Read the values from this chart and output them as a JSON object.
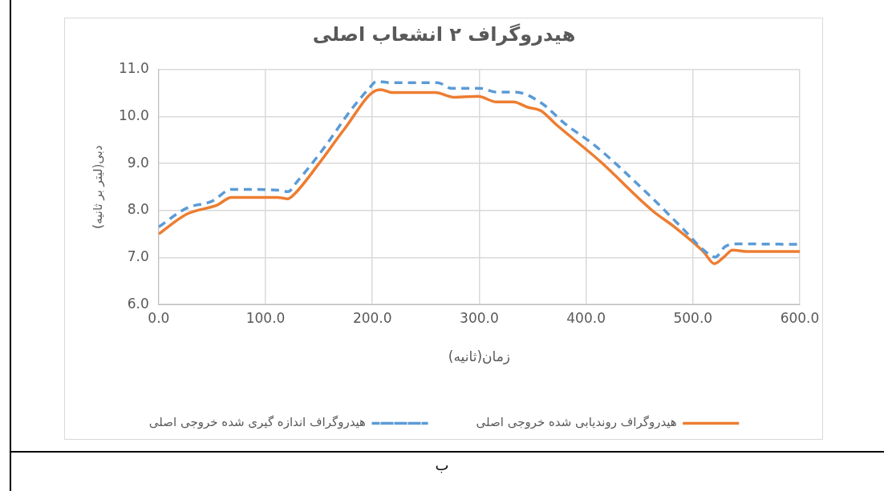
{
  "chart_data": {
    "type": "line",
    "title": "هیدروگراف ۲ انشعاب اصلی",
    "xlabel": "زمان(ثانیه)",
    "ylabel": "دبی(لیتر بر ثانیه)",
    "annotations": [
      "ب"
    ],
    "xlim": [
      0,
      600
    ],
    "xticks": [
      {
        "value": 0,
        "label": "0.0"
      },
      {
        "value": 100,
        "label": "100.0"
      },
      {
        "value": 200,
        "label": "200.0"
      },
      {
        "value": 300,
        "label": "300.0"
      },
      {
        "value": 400,
        "label": "400.0"
      },
      {
        "value": 500,
        "label": "500.0"
      },
      {
        "value": 600,
        "label": "600.0"
      }
    ],
    "ylim": [
      6,
      11
    ],
    "yticks": [
      {
        "value": 6,
        "label": "6.0"
      },
      {
        "value": 7,
        "label": "7.0"
      },
      {
        "value": 8,
        "label": "8.0"
      },
      {
        "value": 9,
        "label": "9.0"
      },
      {
        "value": 10,
        "label": "10.0"
      },
      {
        "value": 11,
        "label": "11.0"
      }
    ],
    "grid": true,
    "legend": "bottom",
    "marker": "none",
    "series": [
      {
        "name": "هیدروگراف روندیابی شده خروجی اصلی",
        "color": "#ed7d31",
        "line_style": "solid",
        "x": [
          0,
          26,
          55,
          68,
          111,
          121,
          127,
          150,
          174,
          204,
          208,
          219,
          259,
          276,
          299,
          316,
          332,
          345,
          358,
          371,
          413,
          463,
          481,
          510,
          520,
          529,
          537,
          550,
          600
        ],
        "values": [
          7.5,
          7.92,
          8.12,
          8.28,
          8.28,
          8.25,
          8.35,
          9.0,
          9.74,
          10.56,
          10.57,
          10.51,
          10.51,
          10.41,
          10.43,
          10.31,
          10.31,
          10.2,
          10.12,
          9.85,
          9.05,
          7.98,
          7.68,
          7.12,
          6.87,
          7.01,
          7.16,
          7.13,
          7.13
        ]
      },
      {
        "name": "هیدروگراف اندازه گیری شده خروجی اصلی",
        "color": "#5b9bd5",
        "line_style": "dashed",
        "x": [
          0,
          26,
          50,
          68,
          113,
          121,
          129,
          153,
          180,
          197,
          204,
          216,
          261,
          274,
          301,
          316,
          334,
          358,
          379,
          410,
          458,
          489,
          512,
          521,
          530,
          541,
          600
        ],
        "values": [
          7.65,
          8.05,
          8.2,
          8.45,
          8.43,
          8.4,
          8.6,
          9.28,
          10.14,
          10.6,
          10.75,
          10.72,
          10.72,
          10.6,
          10.6,
          10.52,
          10.52,
          10.29,
          9.87,
          9.35,
          8.35,
          7.65,
          7.12,
          7.01,
          7.23,
          7.29,
          7.28
        ]
      }
    ]
  }
}
